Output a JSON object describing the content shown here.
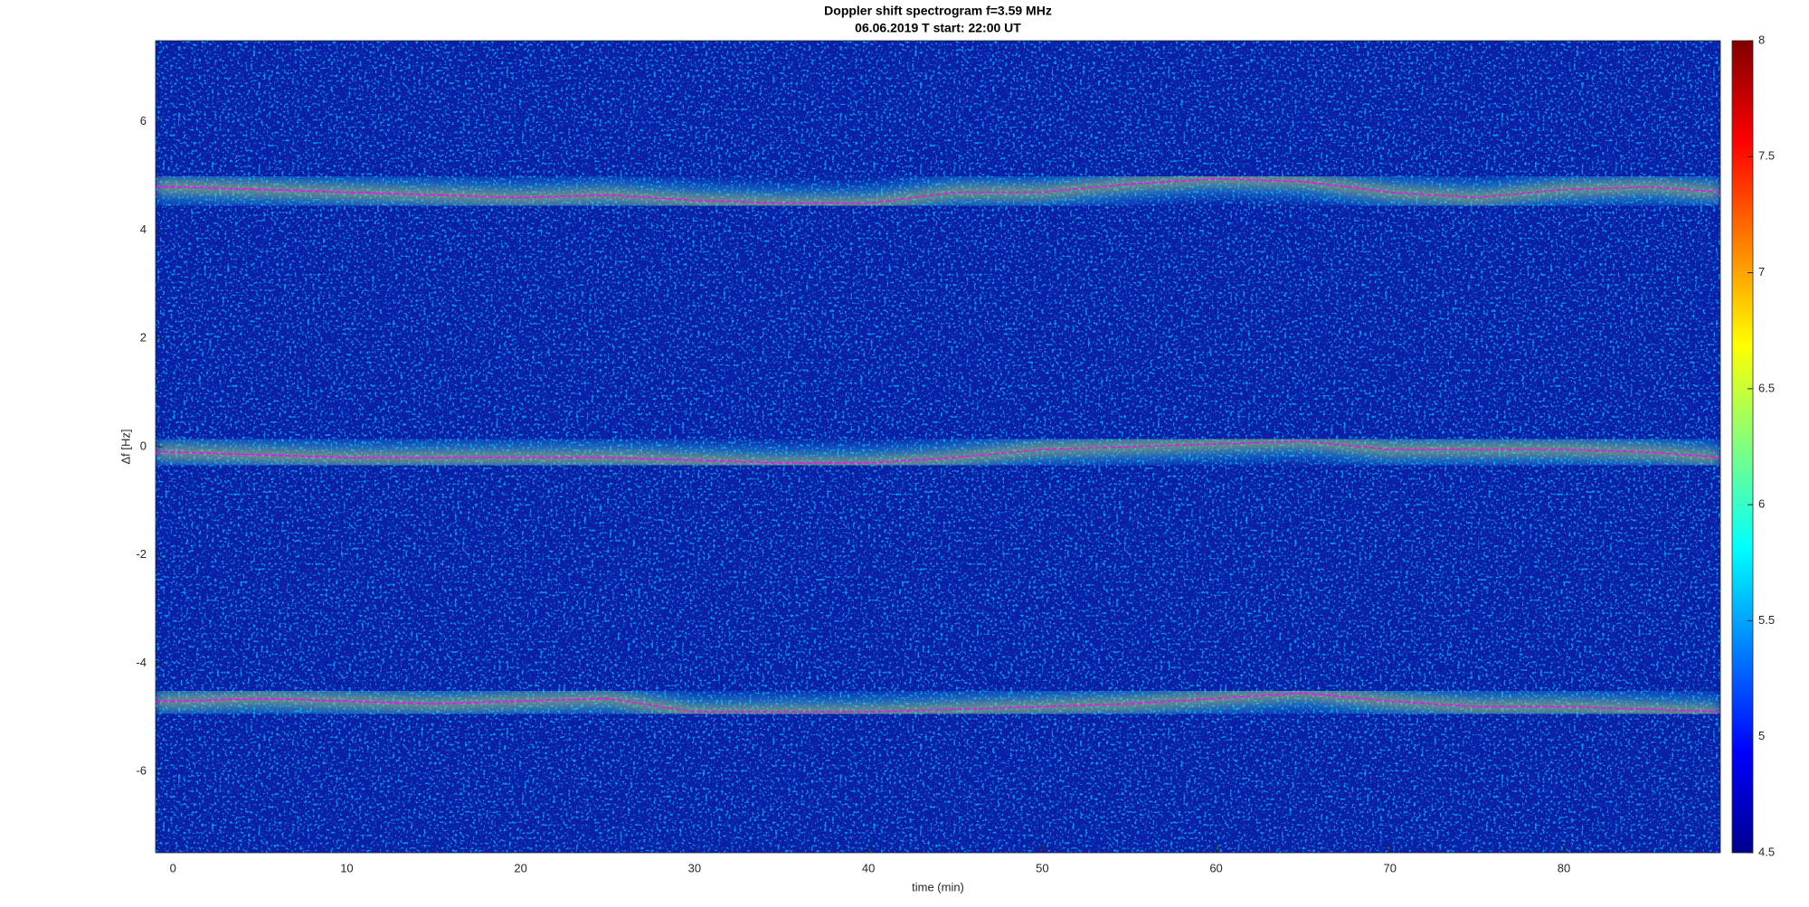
{
  "chart_data": {
    "type": "spectrogram",
    "title": "Doppler shift spectrogram f=3.59 MHz",
    "subtitle": "06.06.2019    T start: 22:00 UT",
    "xlabel": "time (min)",
    "ylabel": "Δf [Hz]",
    "xlim": [
      -1,
      89
    ],
    "ylim": [
      -7.5,
      7.5
    ],
    "xticks": [
      0,
      10,
      20,
      30,
      40,
      50,
      60,
      70,
      80
    ],
    "yticks": [
      -6,
      -4,
      -2,
      0,
      2,
      4,
      6
    ],
    "colormap": "jet",
    "clim": [
      4.5,
      8
    ],
    "cticks": [
      4.5,
      5,
      5.5,
      6,
      6.5,
      7,
      7.5,
      8
    ],
    "x": [
      -1,
      0,
      5,
      10,
      15,
      20,
      25,
      30,
      35,
      40,
      45,
      50,
      55,
      60,
      65,
      70,
      75,
      80,
      85,
      89
    ],
    "series": [
      {
        "color": "#ff00ff",
        "values": [
          4.8,
          4.8,
          4.75,
          4.7,
          4.65,
          4.6,
          4.65,
          4.55,
          4.5,
          4.5,
          4.7,
          4.7,
          4.85,
          4.95,
          4.9,
          4.7,
          4.6,
          4.75,
          4.8,
          4.7
        ]
      },
      {
        "color": "#ff00ff",
        "values": [
          -0.1,
          -0.1,
          -0.15,
          -0.2,
          -0.2,
          -0.2,
          -0.2,
          -0.25,
          -0.3,
          -0.3,
          -0.2,
          -0.05,
          0,
          0.05,
          0.1,
          -0.05,
          -0.05,
          -0.05,
          -0.1,
          -0.2
        ]
      },
      {
        "color": "#ff00ff",
        "values": [
          -4.7,
          -4.7,
          -4.65,
          -4.7,
          -4.75,
          -4.7,
          -4.65,
          -4.9,
          -4.9,
          -4.9,
          -4.85,
          -4.8,
          -4.75,
          -4.65,
          -4.55,
          -4.7,
          -4.8,
          -4.8,
          -4.85,
          -4.9
        ]
      }
    ]
  }
}
